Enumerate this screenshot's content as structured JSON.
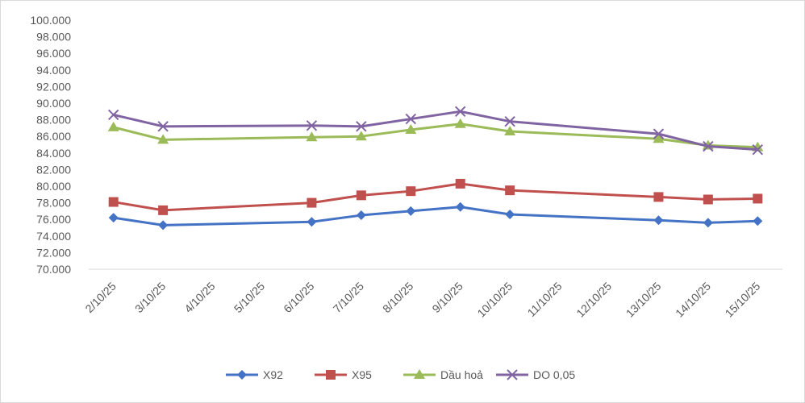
{
  "chart_data": {
    "type": "line",
    "title": "",
    "xlabel": "",
    "ylabel": "",
    "ylim": [
      70000,
      100000
    ],
    "ytick_step": 2000,
    "ytick_labels": [
      "70.000",
      "72.000",
      "74.000",
      "76.000",
      "78.000",
      "80.000",
      "82.000",
      "84.000",
      "86.000",
      "88.000",
      "90.000",
      "92.000",
      "94.000",
      "96.000",
      "98.000",
      "100.000"
    ],
    "categories": [
      "2/10/25",
      "3/10/25",
      "4/10/25",
      "5/10/25",
      "6/10/25",
      "7/10/25",
      "8/10/25",
      "9/10/25",
      "10/10/25",
      "11/10/25",
      "12/10/25",
      "13/10/25",
      "14/10/25",
      "15/10/25"
    ],
    "grid": false,
    "legend_position": "bottom",
    "series": [
      {
        "name": "X92",
        "color": "#4472c4",
        "marker": "diamond",
        "values": [
          76200,
          75300,
          null,
          null,
          75700,
          76500,
          77000,
          77500,
          76600,
          null,
          null,
          75900,
          75600,
          75800
        ]
      },
      {
        "name": "X95",
        "color": "#c0504d",
        "marker": "square",
        "values": [
          78100,
          77100,
          null,
          null,
          78000,
          78900,
          79400,
          80300,
          79500,
          null,
          null,
          78700,
          78400,
          78500
        ]
      },
      {
        "name": "Dầu hoả",
        "color": "#9bbb59",
        "marker": "triangle",
        "values": [
          87100,
          85600,
          null,
          null,
          85900,
          86000,
          86800,
          87500,
          86600,
          null,
          null,
          85700,
          84900,
          84700
        ]
      },
      {
        "name": "DO 0,05",
        "color": "#8064a2",
        "marker": "x",
        "values": [
          88600,
          87200,
          null,
          null,
          87300,
          87200,
          88100,
          89000,
          87800,
          null,
          null,
          86300,
          84800,
          84400
        ]
      }
    ]
  }
}
